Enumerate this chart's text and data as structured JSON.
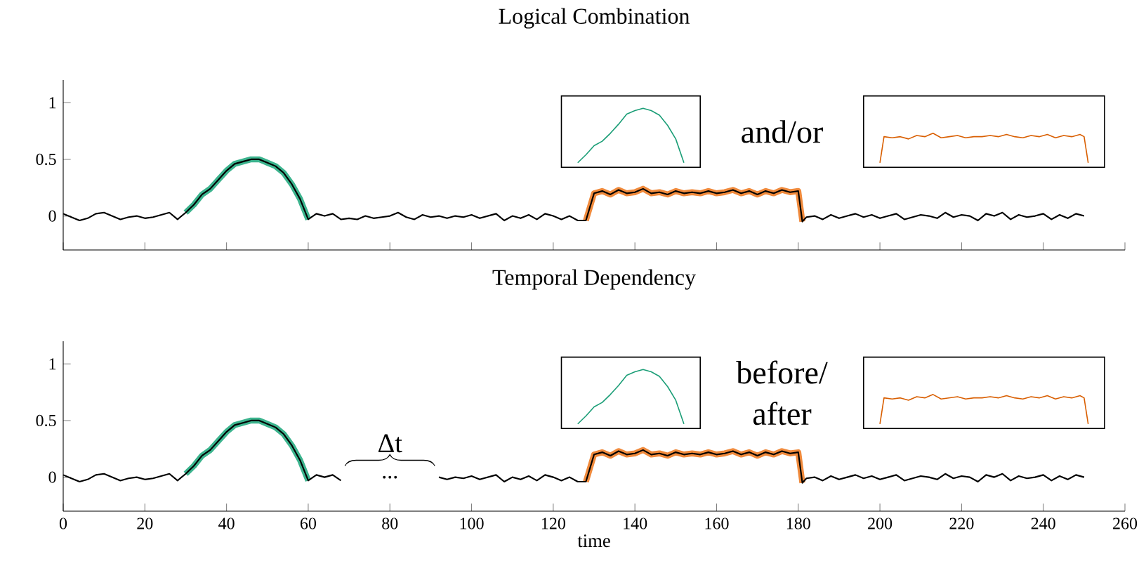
{
  "chart_data": [
    {
      "type": "line",
      "title": "Logical Combination",
      "xlim": [
        0,
        260
      ],
      "ylim": [
        -0.3,
        1.2
      ],
      "xticks": [
        0,
        20,
        40,
        60,
        80,
        100,
        120,
        140,
        160,
        180,
        200,
        220,
        240,
        260
      ],
      "yticks": [
        0,
        0.5,
        1
      ],
      "tick_labels": "y",
      "annotations": [
        "and/or"
      ],
      "series": [
        {
          "color": "#000000",
          "x": [
            0,
            2,
            4,
            6,
            8,
            10,
            12,
            14,
            16,
            18,
            20,
            22,
            24,
            26,
            28,
            30,
            32,
            34,
            36,
            38,
            40,
            42,
            44,
            46,
            48,
            50,
            52,
            54,
            56,
            58,
            60,
            62,
            64,
            66,
            68,
            70,
            72,
            74,
            76,
            78,
            80,
            82,
            84,
            86,
            88,
            90,
            92,
            94,
            96,
            98,
            100,
            102,
            104,
            106,
            108,
            110,
            112,
            114,
            116,
            118,
            120,
            122,
            124,
            126,
            128,
            130,
            132,
            134,
            136,
            138,
            140,
            142,
            144,
            146,
            148,
            150,
            152,
            154,
            156,
            158,
            160,
            162,
            164,
            166,
            168,
            170,
            172,
            174,
            176,
            178,
            180,
            181,
            182,
            184,
            186,
            188,
            190,
            192,
            194,
            196,
            198,
            200,
            202,
            204,
            206,
            208,
            210,
            212,
            214,
            216,
            218,
            220,
            222,
            224,
            226,
            228,
            230,
            232,
            234,
            236,
            238,
            240,
            242,
            244,
            246,
            248,
            250
          ],
          "values": [
            0.02,
            -0.01,
            -0.04,
            -0.02,
            0.02,
            0.03,
            0.0,
            -0.03,
            -0.01,
            0.0,
            -0.02,
            -0.01,
            0.01,
            0.03,
            -0.03,
            0.03,
            0.1,
            0.19,
            0.24,
            0.32,
            0.4,
            0.46,
            0.48,
            0.5,
            0.5,
            0.47,
            0.44,
            0.38,
            0.28,
            0.15,
            -0.03,
            0.02,
            0.0,
            0.02,
            -0.03,
            -0.02,
            -0.03,
            0.0,
            -0.02,
            -0.01,
            0.0,
            0.03,
            -0.01,
            -0.03,
            0.01,
            -0.01,
            0.0,
            -0.02,
            0.0,
            -0.01,
            0.01,
            -0.02,
            0.0,
            0.02,
            -0.04,
            0.0,
            -0.02,
            0.01,
            -0.03,
            0.02,
            0.0,
            -0.03,
            0.0,
            -0.04,
            -0.04,
            0.2,
            0.22,
            0.19,
            0.23,
            0.2,
            0.21,
            0.24,
            0.2,
            0.21,
            0.19,
            0.22,
            0.2,
            0.21,
            0.2,
            0.22,
            0.2,
            0.21,
            0.23,
            0.2,
            0.22,
            0.19,
            0.22,
            0.2,
            0.23,
            0.21,
            0.22,
            -0.05,
            -0.01,
            0.0,
            -0.03,
            0.01,
            -0.02,
            0.0,
            0.02,
            -0.01,
            0.01,
            -0.02,
            0.0,
            0.02,
            -0.03,
            -0.01,
            0.01,
            0.0,
            -0.02,
            0.03,
            -0.01,
            0.01,
            0.0,
            -0.04,
            0.02,
            0.0,
            0.03,
            -0.03,
            0.01,
            -0.01,
            0.0,
            0.02,
            -0.03,
            0.01,
            -0.02,
            0.02,
            0.0
          ]
        },
        {
          "color": "#3cb48e",
          "x": [
            30,
            32,
            34,
            36,
            38,
            40,
            42,
            44,
            46,
            48,
            50,
            52,
            54,
            56,
            58,
            60
          ],
          "values": [
            0.03,
            0.1,
            0.19,
            0.24,
            0.32,
            0.4,
            0.46,
            0.48,
            0.5,
            0.5,
            0.47,
            0.44,
            0.38,
            0.28,
            0.15,
            -0.03
          ]
        },
        {
          "color": "#f08a3c",
          "x": [
            128,
            130,
            132,
            134,
            136,
            138,
            140,
            142,
            144,
            146,
            148,
            150,
            152,
            154,
            156,
            158,
            160,
            162,
            164,
            166,
            168,
            170,
            172,
            174,
            176,
            178,
            180,
            181
          ],
          "values": [
            -0.04,
            0.2,
            0.22,
            0.19,
            0.23,
            0.2,
            0.21,
            0.24,
            0.2,
            0.21,
            0.19,
            0.22,
            0.2,
            0.21,
            0.2,
            0.22,
            0.2,
            0.21,
            0.23,
            0.2,
            0.22,
            0.19,
            0.22,
            0.2,
            0.23,
            0.21,
            0.22,
            -0.05
          ]
        },
        {
          "color": "#1b9e77",
          "x": [
            126,
            128,
            130,
            132,
            134,
            136,
            138,
            140,
            142,
            144,
            146,
            148,
            150,
            152
          ],
          "values": [
            0.47,
            0.54,
            0.62,
            0.66,
            0.73,
            0.81,
            0.9,
            0.93,
            0.95,
            0.93,
            0.89,
            0.8,
            0.68,
            0.47
          ]
        },
        {
          "color": "#d95f02",
          "x": [
            200,
            201,
            203,
            205,
            207,
            209,
            211,
            213,
            215,
            217,
            219,
            221,
            223,
            225,
            227,
            229,
            231,
            233,
            235,
            237,
            239,
            241,
            243,
            245,
            247,
            249,
            250,
            251
          ],
          "values": [
            0.47,
            0.7,
            0.69,
            0.7,
            0.68,
            0.71,
            0.7,
            0.73,
            0.69,
            0.7,
            0.71,
            0.69,
            0.7,
            0.7,
            0.71,
            0.7,
            0.72,
            0.7,
            0.69,
            0.71,
            0.7,
            0.72,
            0.69,
            0.71,
            0.7,
            0.72,
            0.7,
            0.47
          ]
        }
      ]
    },
    {
      "type": "line",
      "title": "Temporal Dependency",
      "xlabel": "time",
      "xlim": [
        0,
        260
      ],
      "ylim": [
        -0.3,
        1.2
      ],
      "xticks": [
        0,
        20,
        40,
        60,
        80,
        100,
        120,
        140,
        160,
        180,
        200,
        220,
        240,
        260
      ],
      "yticks": [
        0,
        0.5,
        1
      ],
      "annotations": [
        "before/ after",
        "Δt",
        "..."
      ],
      "series": [
        {
          "color": "#000000",
          "x": [
            0,
            2,
            4,
            6,
            8,
            10,
            12,
            14,
            16,
            18,
            20,
            22,
            24,
            26,
            28,
            30,
            32,
            34,
            36,
            38,
            40,
            42,
            44,
            46,
            48,
            50,
            52,
            54,
            56,
            58,
            60,
            62,
            64,
            66,
            68,
            70,
            72,
            74,
            76,
            78,
            80,
            82,
            84,
            86,
            88,
            90,
            92,
            94,
            96,
            98,
            100,
            102,
            104,
            106,
            108,
            110,
            112,
            114,
            116,
            118,
            120,
            122,
            124,
            126,
            128,
            130,
            132,
            134,
            136,
            138,
            140,
            142,
            144,
            146,
            148,
            150,
            152,
            154,
            156,
            158,
            160,
            162,
            164,
            166,
            168,
            170,
            172,
            174,
            176,
            178,
            180,
            181,
            182,
            184,
            186,
            188,
            190,
            192,
            194,
            196,
            198,
            200,
            202,
            204,
            206,
            208,
            210,
            212,
            214,
            216,
            218,
            220,
            222,
            224,
            226,
            228,
            230,
            232,
            234,
            236,
            238,
            240,
            242,
            244,
            246,
            248,
            250
          ],
          "values": [
            0.02,
            -0.01,
            -0.04,
            -0.02,
            0.02,
            0.03,
            0.0,
            -0.03,
            -0.01,
            0.0,
            -0.02,
            -0.01,
            0.01,
            0.03,
            -0.03,
            0.03,
            0.1,
            0.19,
            0.24,
            0.32,
            0.4,
            0.46,
            0.48,
            0.5,
            0.5,
            0.47,
            0.44,
            0.38,
            0.28,
            0.15,
            -0.03,
            0.02,
            0.0,
            0.02,
            -0.03,
            null,
            null,
            null,
            null,
            null,
            null,
            null,
            null,
            null,
            null,
            null,
            0.0,
            -0.02,
            0.0,
            -0.01,
            0.01,
            -0.02,
            0.0,
            0.02,
            -0.04,
            0.0,
            -0.02,
            0.01,
            -0.03,
            0.02,
            0.0,
            -0.03,
            0.0,
            -0.04,
            -0.04,
            0.2,
            0.22,
            0.19,
            0.23,
            0.2,
            0.21,
            0.24,
            0.2,
            0.21,
            0.19,
            0.22,
            0.2,
            0.21,
            0.2,
            0.22,
            0.2,
            0.21,
            0.23,
            0.2,
            0.22,
            0.19,
            0.22,
            0.2,
            0.23,
            0.21,
            0.22,
            -0.05,
            -0.01,
            0.0,
            -0.03,
            0.01,
            -0.02,
            0.0,
            0.02,
            -0.01,
            0.01,
            -0.02,
            0.0,
            0.02,
            -0.03,
            -0.01,
            0.01,
            0.0,
            -0.02,
            0.03,
            -0.01,
            0.01,
            0.0,
            -0.04,
            0.02,
            0.0,
            0.03,
            -0.03,
            0.01,
            -0.01,
            0.0,
            0.02,
            -0.03,
            0.01,
            -0.02,
            0.02,
            0.0
          ]
        },
        {
          "color": "#3cb48e",
          "x": [
            30,
            32,
            34,
            36,
            38,
            40,
            42,
            44,
            46,
            48,
            50,
            52,
            54,
            56,
            58,
            60
          ],
          "values": [
            0.03,
            0.1,
            0.19,
            0.24,
            0.32,
            0.4,
            0.46,
            0.48,
            0.5,
            0.5,
            0.47,
            0.44,
            0.38,
            0.28,
            0.15,
            -0.03
          ]
        },
        {
          "color": "#f08a3c",
          "x": [
            128,
            130,
            132,
            134,
            136,
            138,
            140,
            142,
            144,
            146,
            148,
            150,
            152,
            154,
            156,
            158,
            160,
            162,
            164,
            166,
            168,
            170,
            172,
            174,
            176,
            178,
            180,
            181
          ],
          "values": [
            -0.04,
            0.2,
            0.22,
            0.19,
            0.23,
            0.2,
            0.21,
            0.24,
            0.2,
            0.21,
            0.19,
            0.22,
            0.2,
            0.21,
            0.2,
            0.22,
            0.2,
            0.21,
            0.23,
            0.2,
            0.22,
            0.19,
            0.22,
            0.2,
            0.23,
            0.21,
            0.22,
            -0.05
          ]
        },
        {
          "color": "#1b9e77",
          "x": [
            126,
            128,
            130,
            132,
            134,
            136,
            138,
            140,
            142,
            144,
            146,
            148,
            150,
            152
          ],
          "values": [
            0.47,
            0.54,
            0.62,
            0.66,
            0.73,
            0.81,
            0.9,
            0.93,
            0.95,
            0.93,
            0.89,
            0.8,
            0.68,
            0.47
          ]
        },
        {
          "color": "#d95f02",
          "x": [
            200,
            201,
            203,
            205,
            207,
            209,
            211,
            213,
            215,
            217,
            219,
            221,
            223,
            225,
            227,
            229,
            231,
            233,
            235,
            237,
            239,
            241,
            243,
            245,
            247,
            249,
            250,
            251
          ],
          "values": [
            0.47,
            0.7,
            0.69,
            0.7,
            0.68,
            0.71,
            0.7,
            0.73,
            0.69,
            0.7,
            0.71,
            0.69,
            0.7,
            0.7,
            0.71,
            0.7,
            0.72,
            0.7,
            0.69,
            0.71,
            0.7,
            0.72,
            0.69,
            0.71,
            0.7,
            0.72,
            0.7,
            0.47
          ]
        }
      ]
    }
  ]
}
